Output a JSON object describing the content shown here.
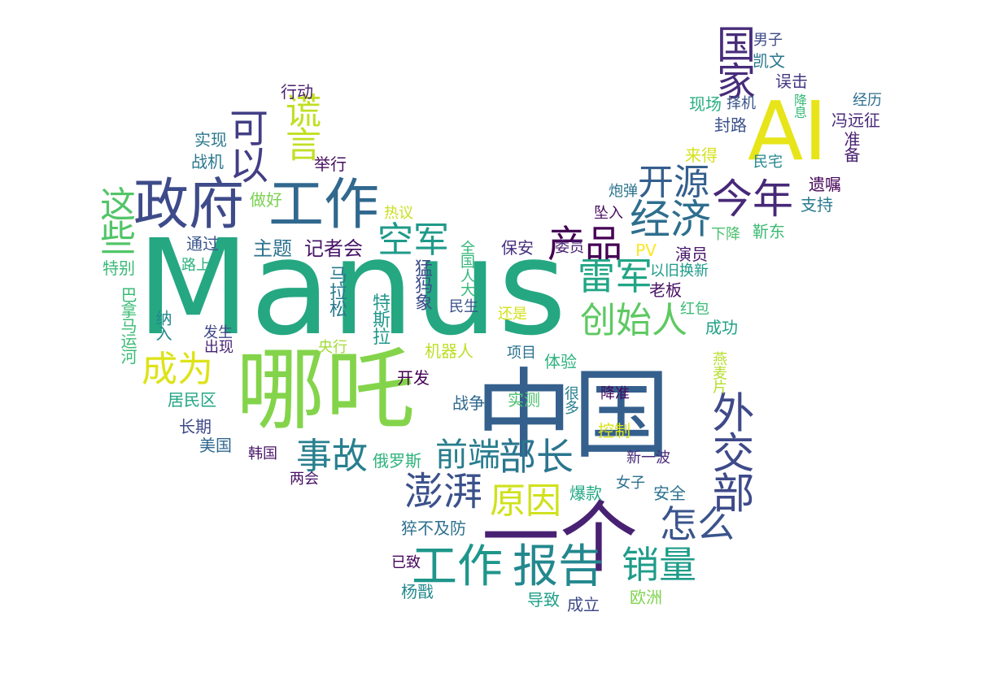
{
  "words": [
    {
      "id": "manus",
      "text": "Manus",
      "color": "#25a782"
    },
    {
      "id": "zhongguo",
      "text": "中国",
      "color": "#35608d"
    },
    {
      "id": "nezha",
      "text": "哪吒",
      "color": "#84d44b"
    },
    {
      "id": "ai",
      "text": "AI",
      "color": "#e7e419"
    },
    {
      "id": "yige",
      "text": "一个",
      "color": "#482173"
    },
    {
      "id": "zhengfu",
      "text": "政府",
      "color": "#3e4b8a"
    },
    {
      "id": "gongzuo1",
      "text": "工作",
      "color": "#31688e"
    },
    {
      "id": "gongzuo2",
      "text": "工作",
      "color": "#1f968b"
    },
    {
      "id": "baogao",
      "text": "报告",
      "color": "#23888e"
    },
    {
      "id": "waijiaobu",
      "text": "外交部",
      "color": "#3e4a89"
    },
    {
      "id": "guojia",
      "text": "国家",
      "color": "#472c7a"
    },
    {
      "id": "jinnian",
      "text": "今年",
      "color": "#472878"
    },
    {
      "id": "jingji",
      "text": "经济",
      "color": "#2e6e8e"
    },
    {
      "id": "kaiyuan",
      "text": "开源",
      "color": "#355f8d"
    },
    {
      "id": "chanpin",
      "text": "产品",
      "color": "#440154"
    },
    {
      "id": "leijun",
      "text": "雷军",
      "color": "#21a585"
    },
    {
      "id": "chuangshiren",
      "text": "创始人",
      "color": "#5ec962"
    },
    {
      "id": "kongjun",
      "text": "空军",
      "color": "#1f9a8a"
    },
    {
      "id": "keyi",
      "text": "可以",
      "color": "#433e85"
    },
    {
      "id": "huangyan",
      "text": "谎言",
      "color": "#c2df23"
    },
    {
      "id": "zhexie",
      "text": "这些",
      "color": "#52c569"
    },
    {
      "id": "chengwei",
      "text": "成为",
      "color": "#dde318"
    },
    {
      "id": "shigu",
      "text": "事故",
      "color": "#277f8e"
    },
    {
      "id": "pengpai",
      "text": "澎湃",
      "color": "#3b518b"
    },
    {
      "id": "qianduan",
      "text": "前端",
      "color": "#287d8e"
    },
    {
      "id": "buzhang",
      "text": "部长",
      "color": "#2a768e"
    },
    {
      "id": "yuanyin",
      "text": "原因",
      "color": "#d0e11c"
    },
    {
      "id": "zenme",
      "text": "怎么",
      "color": "#3a548c"
    },
    {
      "id": "xiaoliang",
      "text": "销量",
      "color": "#1e9c89"
    },
    {
      "id": "zhuti",
      "text": "主题",
      "color": "#2c718e"
    },
    {
      "id": "jizhehui",
      "text": "记者会",
      "color": "#481467"
    },
    {
      "id": "xingdong",
      "text": "行动",
      "color": "#481d6f"
    },
    {
      "id": "shixian",
      "text": "实现",
      "color": "#2a778e"
    },
    {
      "id": "zhanji",
      "text": "战机",
      "color": "#2a788e"
    },
    {
      "id": "juxing",
      "text": "举行",
      "color": "#470d60"
    },
    {
      "id": "zuohao",
      "text": "做好",
      "color": "#7ad151"
    },
    {
      "id": "reyi",
      "text": "热议",
      "color": "#c8e020"
    },
    {
      "id": "tongguo",
      "text": "通过",
      "color": "#39558c"
    },
    {
      "id": "tebie",
      "text": "特别",
      "color": "#3aba76"
    },
    {
      "id": "lushang",
      "text": "路上",
      "color": "#2db27d"
    },
    {
      "id": "jianada",
      "text": "巴拿马运河",
      "color": "#3bbb75"
    },
    {
      "id": "naru",
      "text": "纳入",
      "color": "#23888e"
    },
    {
      "id": "fasheng",
      "text": "发生",
      "color": "#3f4788"
    },
    {
      "id": "chuxian",
      "text": "出现",
      "color": "#482475"
    },
    {
      "id": "malasong",
      "text": "马拉松",
      "color": "#29798e"
    },
    {
      "id": "menggma",
      "text": "猛犸象",
      "color": "#3d4d8a"
    },
    {
      "id": "tesila",
      "text": "特斯拉",
      "color": "#1f978b"
    },
    {
      "id": "quanguorenda",
      "text": "全国人大",
      "color": "#35b779"
    },
    {
      "id": "minsheng",
      "text": "民生",
      "color": "#3b528b"
    },
    {
      "id": "baoan",
      "text": "保安",
      "color": "#46307e"
    },
    {
      "id": "weiyuan",
      "text": "委员",
      "color": "#482173"
    },
    {
      "id": "haishi",
      "text": "还是",
      "color": "#d2e21b"
    },
    {
      "id": "yanghang",
      "text": "央行",
      "color": "#a2da37"
    },
    {
      "id": "jiqiren",
      "text": "机器人",
      "color": "#bddf26"
    },
    {
      "id": "xiangmu",
      "text": "项目",
      "color": "#2c718e"
    },
    {
      "id": "tiyan",
      "text": "体验",
      "color": "#2db27d"
    },
    {
      "id": "kaifa",
      "text": "开发",
      "color": "#440154"
    },
    {
      "id": "zhanzheng",
      "text": "战争",
      "color": "#31688e"
    },
    {
      "id": "shice",
      "text": "实测",
      "color": "#4ac16d"
    },
    {
      "id": "henduo",
      "text": "很多",
      "color": "#277f8e"
    },
    {
      "id": "juminqu",
      "text": "居民区",
      "color": "#21a685"
    },
    {
      "id": "changqi",
      "text": "长期",
      "color": "#3e4a89"
    },
    {
      "id": "meiguo",
      "text": "美国",
      "color": "#31688e"
    },
    {
      "id": "hanguo",
      "text": "韩国",
      "color": "#481668"
    },
    {
      "id": "lianghui",
      "text": "两会",
      "color": "#471164"
    },
    {
      "id": "eluosi",
      "text": "俄罗斯",
      "color": "#2fb47c"
    },
    {
      "id": "cubuji",
      "text": "猝不及防",
      "color": "#2d718e"
    },
    {
      "id": "yizhi",
      "text": "已致",
      "color": "#450559"
    },
    {
      "id": "yangjian",
      "text": "杨戬",
      "color": "#23898e"
    },
    {
      "id": "daozhi",
      "text": "导致",
      "color": "#1fa088"
    },
    {
      "id": "chengli",
      "text": "成立",
      "color": "#3e4989"
    },
    {
      "id": "ouzhou",
      "text": "欧洲",
      "color": "#7fd34e"
    },
    {
      "id": "baokuan",
      "text": "爆款",
      "color": "#22a884"
    },
    {
      "id": "nvzi",
      "text": "女子",
      "color": "#2d708e"
    },
    {
      "id": "anquan",
      "text": "安全",
      "color": "#2c738e"
    },
    {
      "id": "xinyibo",
      "text": "新一波",
      "color": "#482979"
    },
    {
      "id": "kongzhi",
      "text": "控制",
      "color": "#d8e219"
    },
    {
      "id": "jiangzhun",
      "text": "降准",
      "color": "#46085c"
    },
    {
      "id": "yanmaipian",
      "text": "燕麦片",
      "color": "#b5de2b"
    },
    {
      "id": "chenggong",
      "text": "成功",
      "color": "#1fa187"
    },
    {
      "id": "hongbao",
      "text": "红包",
      "color": "#3aba76"
    },
    {
      "id": "laoban",
      "text": "老板",
      "color": "#471063"
    },
    {
      "id": "yijiuhuanxin",
      "text": "以旧换新",
      "color": "#1e9b8a"
    },
    {
      "id": "yanyuan",
      "text": "演员",
      "color": "#481769"
    },
    {
      "id": "pv",
      "text": "PV",
      "color": "#fde725"
    },
    {
      "id": "xiajiang",
      "text": "下降",
      "color": "#4ac16d"
    },
    {
      "id": "jindong",
      "text": "靳东",
      "color": "#3dbc74"
    },
    {
      "id": "zhuiru",
      "text": "坠入",
      "color": "#460b5e"
    },
    {
      "id": "paodan",
      "text": "炮弹",
      "color": "#2b748e"
    },
    {
      "id": "laide",
      "text": "来得",
      "color": "#d5e21a"
    },
    {
      "id": "minzhai",
      "text": "民宅",
      "color": "#24878e"
    },
    {
      "id": "yizhu",
      "text": "遗嘱",
      "color": "#450457"
    },
    {
      "id": "zhichi",
      "text": "支持",
      "color": "#297b8e"
    },
    {
      "id": "zhunbei",
      "text": "准备",
      "color": "#481f70"
    },
    {
      "id": "fengyuanzheng",
      "text": "冯远征",
      "color": "#482878"
    },
    {
      "id": "jingli",
      "text": "经历",
      "color": "#2e6d8e"
    },
    {
      "id": "jiangxi",
      "text": "降息",
      "color": "#38b977"
    },
    {
      "id": "wuji",
      "text": "误击",
      "color": "#443983"
    },
    {
      "id": "kaiwen",
      "text": "凯文",
      "color": "#2a768e"
    },
    {
      "id": "nanzi",
      "text": "男子",
      "color": "#3e4a89"
    },
    {
      "id": "xianchang",
      "text": "现场",
      "color": "#28ae80"
    },
    {
      "id": "zeji",
      "text": "择机",
      "color": "#3a538b"
    },
    {
      "id": "fenglu",
      "text": "封路",
      "color": "#3b518b"
    }
  ]
}
